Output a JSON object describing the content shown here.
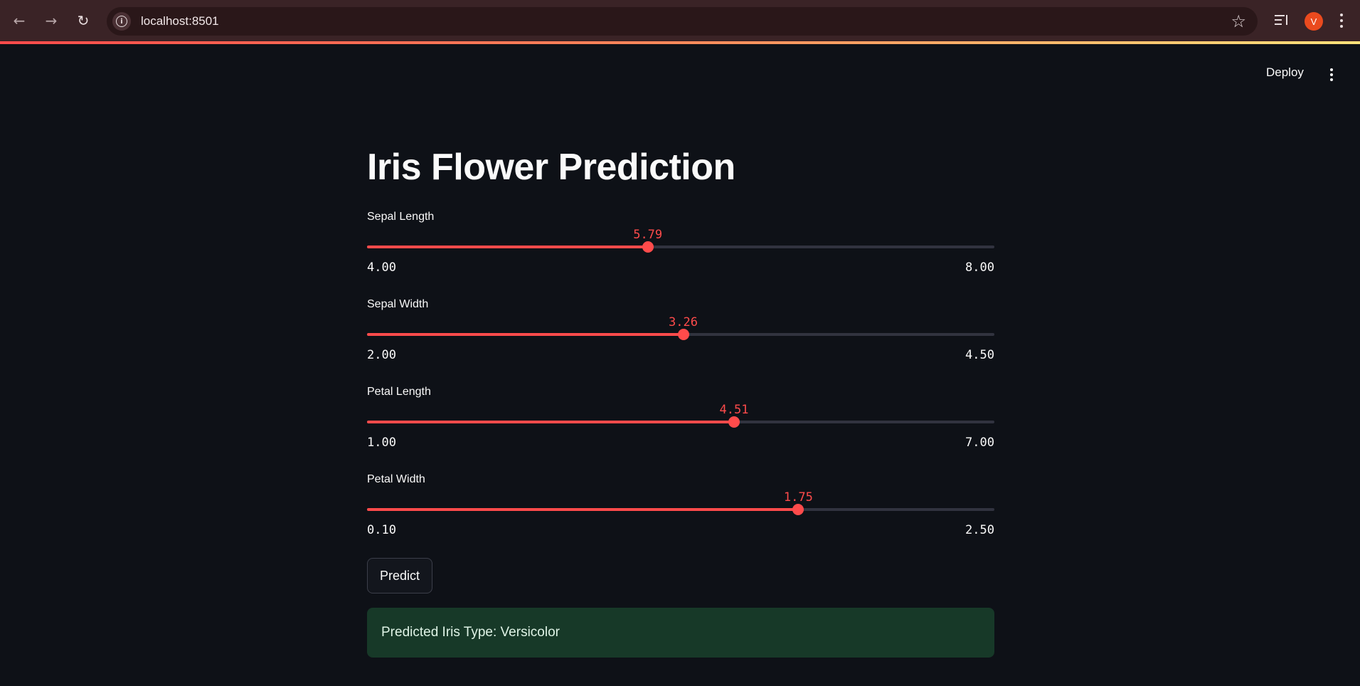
{
  "browser": {
    "url": "localhost:8501",
    "avatar_letter": "V",
    "colors": {
      "chrome": "#3a2326",
      "avatar": "#ea4a1e"
    }
  },
  "icons": {
    "back": "back-arrow-icon",
    "forward": "forward-arrow-icon",
    "reload": "reload-icon",
    "site_info": "info-icon",
    "bookmark": "star-icon",
    "media": "media-controls-icon",
    "menu": "kebab-menu-icon"
  },
  "app": {
    "deploy_label": "Deploy",
    "title": "Iris Flower Prediction",
    "accent_color": "#ff4b4b",
    "sliders": [
      {
        "label": "Sepal Length",
        "value": "5.79",
        "min": "4.00",
        "max": "8.00",
        "fraction": 0.4475
      },
      {
        "label": "Sepal Width",
        "value": "3.26",
        "min": "2.00",
        "max": "4.50",
        "fraction": 0.504
      },
      {
        "label": "Petal Length",
        "value": "4.51",
        "min": "1.00",
        "max": "7.00",
        "fraction": 0.585
      },
      {
        "label": "Petal Width",
        "value": "1.75",
        "min": "0.10",
        "max": "2.50",
        "fraction": 0.6875
      }
    ],
    "predict_label": "Predict",
    "result_text": "Predicted Iris Type: Versicolor"
  }
}
